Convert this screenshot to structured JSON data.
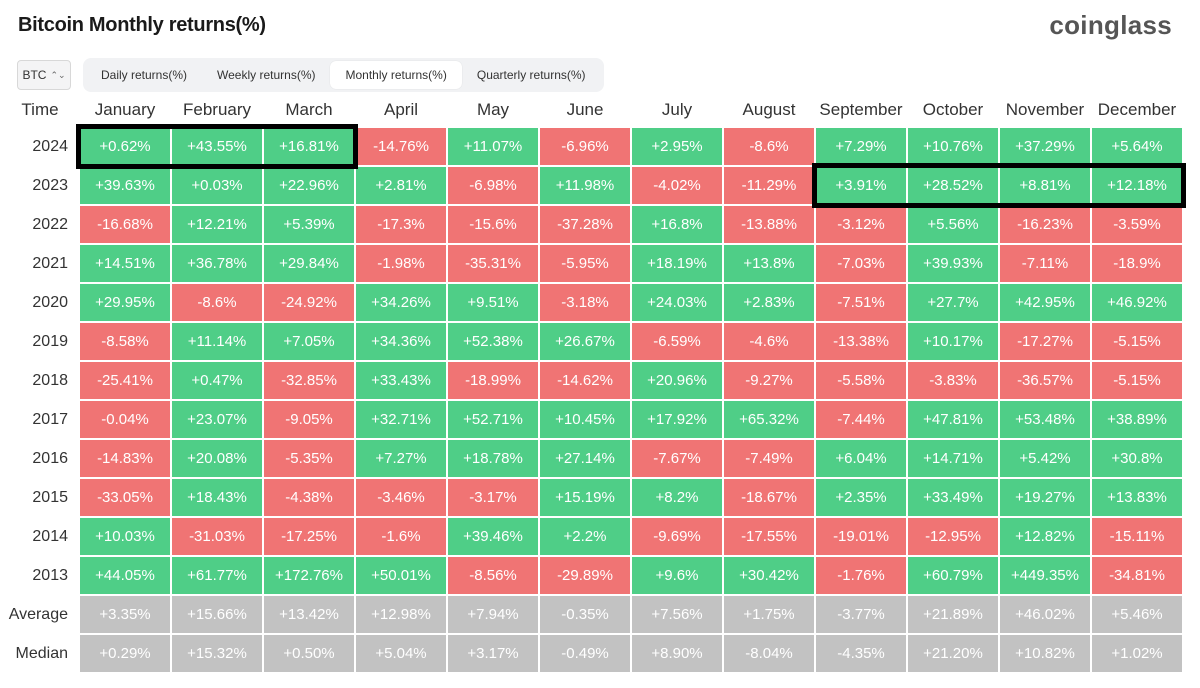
{
  "title": "Bitcoin Monthly returns(%)",
  "brand": "coinglass",
  "asset_select": {
    "value": "BTC",
    "icon": "chevron-updown-icon"
  },
  "tabs": [
    {
      "label": "Daily returns(%)",
      "active": false
    },
    {
      "label": "Weekly returns(%)",
      "active": false
    },
    {
      "label": "Monthly returns(%)",
      "active": true
    },
    {
      "label": "Quarterly returns(%)",
      "active": false
    }
  ],
  "colors": {
    "positive": "#4fce87",
    "negative": "#f07474",
    "summary": "#c2c2c2",
    "highlight": "#000000"
  },
  "chart_data": {
    "type": "table",
    "corner_label": "Time",
    "columns": [
      "January",
      "February",
      "March",
      "April",
      "May",
      "June",
      "July",
      "August",
      "September",
      "October",
      "November",
      "December"
    ],
    "rows": [
      {
        "year": "2024",
        "values": [
          "+0.62%",
          "+43.55%",
          "+16.81%",
          "-14.76%",
          "+11.07%",
          "-6.96%",
          "+2.95%",
          "-8.6%",
          "+7.29%",
          "+10.76%",
          "+37.29%",
          "+5.64%"
        ]
      },
      {
        "year": "2023",
        "values": [
          "+39.63%",
          "+0.03%",
          "+22.96%",
          "+2.81%",
          "-6.98%",
          "+11.98%",
          "-4.02%",
          "-11.29%",
          "+3.91%",
          "+28.52%",
          "+8.81%",
          "+12.18%"
        ]
      },
      {
        "year": "2022",
        "values": [
          "-16.68%",
          "+12.21%",
          "+5.39%",
          "-17.3%",
          "-15.6%",
          "-37.28%",
          "+16.8%",
          "-13.88%",
          "-3.12%",
          "+5.56%",
          "-16.23%",
          "-3.59%"
        ]
      },
      {
        "year": "2021",
        "values": [
          "+14.51%",
          "+36.78%",
          "+29.84%",
          "-1.98%",
          "-35.31%",
          "-5.95%",
          "+18.19%",
          "+13.8%",
          "-7.03%",
          "+39.93%",
          "-7.11%",
          "-18.9%"
        ]
      },
      {
        "year": "2020",
        "values": [
          "+29.95%",
          "-8.6%",
          "-24.92%",
          "+34.26%",
          "+9.51%",
          "-3.18%",
          "+24.03%",
          "+2.83%",
          "-7.51%",
          "+27.7%",
          "+42.95%",
          "+46.92%"
        ]
      },
      {
        "year": "2019",
        "values": [
          "-8.58%",
          "+11.14%",
          "+7.05%",
          "+34.36%",
          "+52.38%",
          "+26.67%",
          "-6.59%",
          "-4.6%",
          "-13.38%",
          "+10.17%",
          "-17.27%",
          "-5.15%"
        ]
      },
      {
        "year": "2018",
        "values": [
          "-25.41%",
          "+0.47%",
          "-32.85%",
          "+33.43%",
          "-18.99%",
          "-14.62%",
          "+20.96%",
          "-9.27%",
          "-5.58%",
          "-3.83%",
          "-36.57%",
          "-5.15%"
        ]
      },
      {
        "year": "2017",
        "values": [
          "-0.04%",
          "+23.07%",
          "-9.05%",
          "+32.71%",
          "+52.71%",
          "+10.45%",
          "+17.92%",
          "+65.32%",
          "-7.44%",
          "+47.81%",
          "+53.48%",
          "+38.89%"
        ]
      },
      {
        "year": "2016",
        "values": [
          "-14.83%",
          "+20.08%",
          "-5.35%",
          "+7.27%",
          "+18.78%",
          "+27.14%",
          "-7.67%",
          "-7.49%",
          "+6.04%",
          "+14.71%",
          "+5.42%",
          "+30.8%"
        ]
      },
      {
        "year": "2015",
        "values": [
          "-33.05%",
          "+18.43%",
          "-4.38%",
          "-3.46%",
          "-3.17%",
          "+15.19%",
          "+8.2%",
          "-18.67%",
          "+2.35%",
          "+33.49%",
          "+19.27%",
          "+13.83%"
        ]
      },
      {
        "year": "2014",
        "values": [
          "+10.03%",
          "-31.03%",
          "-17.25%",
          "-1.6%",
          "+39.46%",
          "+2.2%",
          "-9.69%",
          "-17.55%",
          "-19.01%",
          "-12.95%",
          "+12.82%",
          "-15.11%"
        ]
      },
      {
        "year": "2013",
        "values": [
          "+44.05%",
          "+61.77%",
          "+172.76%",
          "+50.01%",
          "-8.56%",
          "-29.89%",
          "+9.6%",
          "+30.42%",
          "-1.76%",
          "+60.79%",
          "+449.35%",
          "-34.81%"
        ]
      },
      {
        "year": "Average",
        "summary": true,
        "values": [
          "+3.35%",
          "+15.66%",
          "+13.42%",
          "+12.98%",
          "+7.94%",
          "-0.35%",
          "+7.56%",
          "+1.75%",
          "-3.77%",
          "+21.89%",
          "+46.02%",
          "+5.46%"
        ]
      },
      {
        "year": "Median",
        "summary": true,
        "values": [
          "+0.29%",
          "+15.32%",
          "+0.50%",
          "+5.04%",
          "+3.17%",
          "-0.49%",
          "+8.90%",
          "-8.04%",
          "-4.35%",
          "+21.20%",
          "+10.82%",
          "+1.02%"
        ]
      }
    ],
    "highlights": [
      {
        "row": "2024",
        "from": "January",
        "to": "March"
      },
      {
        "row": "2023",
        "from": "September",
        "to": "December"
      }
    ]
  }
}
